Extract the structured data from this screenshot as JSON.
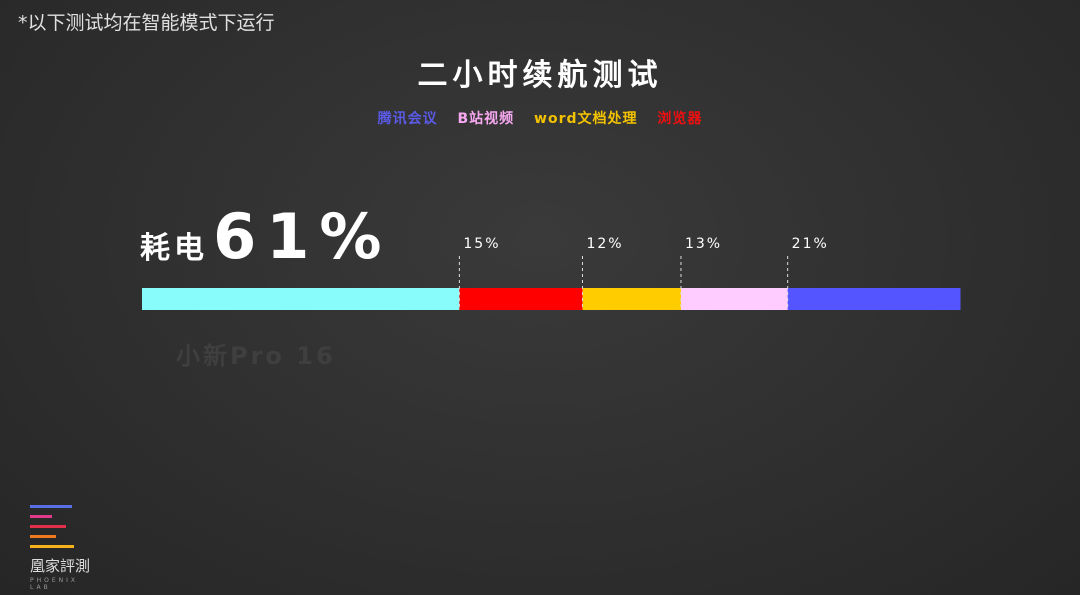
{
  "note": "*以下测试均在智能模式下运行",
  "title": "二小时续航测试",
  "legend": [
    {
      "label": "腾讯会议",
      "color": "#5a5ae6"
    },
    {
      "label": "B站视频",
      "color": "#f7a8f0"
    },
    {
      "label": "word文档处理",
      "color": "#f2c200"
    },
    {
      "label": "浏览器",
      "color": "#ee1010"
    }
  ],
  "headline": {
    "label": "耗电",
    "value": "61%"
  },
  "device_label": "小新Pro 16",
  "chart_data": {
    "type": "bar",
    "orientation": "horizontal-stacked",
    "total": 61,
    "unit": "%",
    "segments": [
      {
        "value": 0,
        "color": "#88fbfb",
        "label": ""
      },
      {
        "value": 15,
        "color": "#ff0000",
        "label": "15%"
      },
      {
        "value": 12,
        "color": "#ffcc00",
        "label": "12%"
      },
      {
        "value": 13,
        "color": "#ffccff",
        "label": "13%"
      },
      {
        "value": 21,
        "color": "#5555ff",
        "label": "21%"
      }
    ],
    "remaining_share": 0.388
  },
  "logo": {
    "name": "凰家評測",
    "sub": "PHOENIX LAB",
    "colors": [
      "#5a6ee6",
      "#e23a8a",
      "#e0304a",
      "#f07a20",
      "#f5b21a"
    ]
  }
}
